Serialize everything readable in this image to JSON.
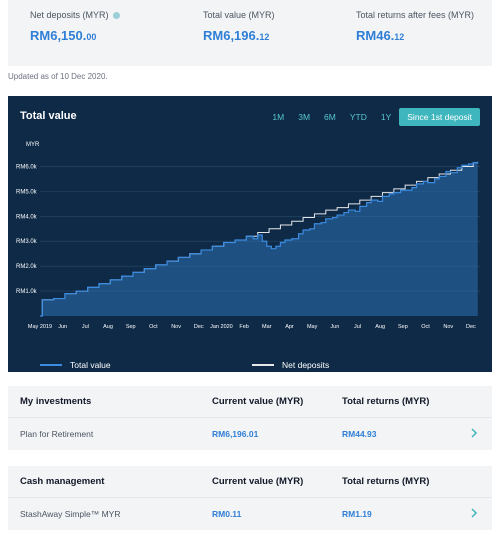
{
  "summary": {
    "net_deposits": {
      "label": "Net deposits (MYR)",
      "main": "RM6,150.",
      "cents": "00"
    },
    "total_value": {
      "label": "Total value (MYR)",
      "main": "RM6,196.",
      "cents": "12"
    },
    "total_returns": {
      "label": "Total returns after fees (MYR)",
      "main": "RM46.",
      "cents": "12"
    }
  },
  "updated": "Updated as of 10 Dec 2020.",
  "chart": {
    "title": "Total value",
    "ranges": [
      "1M",
      "3M",
      "6M",
      "YTD",
      "1Y",
      "Since 1st deposit"
    ],
    "active_range": "Since 1st deposit",
    "legend": {
      "total_value": "Total value",
      "net_deposits": "Net deposits"
    }
  },
  "chart_data": {
    "type": "area",
    "ylabel": "MYR",
    "y_ticks": [
      "RM1.0k",
      "RM2.0k",
      "RM3.0k",
      "RM4.0k",
      "RM5.0k",
      "RM6.0k"
    ],
    "ylim": [
      0,
      6500
    ],
    "x_ticks": [
      "May 2019",
      "Jun",
      "Jul",
      "Aug",
      "Sep",
      "Oct",
      "Nov",
      "Dec",
      "Jan 2020",
      "Feb",
      "Mar",
      "Apr",
      "May",
      "Jun",
      "Jul",
      "Aug",
      "Sep",
      "Oct",
      "Nov",
      "Dec"
    ],
    "colors": {
      "total_value": "#3b8be0",
      "net_deposits": "#e5e7eb",
      "area": "#2d6fb3"
    },
    "series": [
      {
        "name": "Total value",
        "x": [
          0,
          0.1,
          0.6,
          1.1,
          1.6,
          2.1,
          2.6,
          3.1,
          3.6,
          4.1,
          4.6,
          5.1,
          5.6,
          6.1,
          6.6,
          7.1,
          7.6,
          8.1,
          8.6,
          9.1,
          9.4,
          9.6,
          9.8,
          10.0,
          10.2,
          10.4,
          10.6,
          10.8,
          11.1,
          11.4,
          11.6,
          11.9,
          12.1,
          12.4,
          12.6,
          12.9,
          13.1,
          13.4,
          13.6,
          13.9,
          14.1,
          14.4,
          14.6,
          14.9,
          15.1,
          15.4,
          15.6,
          15.9,
          16.1,
          16.4,
          16.6,
          16.9,
          17.1,
          17.4,
          17.6,
          17.9,
          18.1,
          18.4,
          18.6,
          18.9,
          19.1,
          19.3
        ],
        "values": [
          0,
          650,
          700,
          900,
          1000,
          1150,
          1300,
          1450,
          1600,
          1750,
          1900,
          2050,
          2200,
          2350,
          2500,
          2650,
          2800,
          2950,
          3050,
          3200,
          3100,
          3250,
          3000,
          2800,
          2700,
          2800,
          2950,
          3050,
          3100,
          3300,
          3450,
          3500,
          3700,
          3750,
          3900,
          3950,
          4050,
          4150,
          4250,
          4200,
          4400,
          4550,
          4650,
          4600,
          4800,
          4900,
          4950,
          5050,
          5050,
          5150,
          5300,
          5400,
          5350,
          5500,
          5600,
          5800,
          5750,
          5950,
          6050,
          6100,
          6150,
          6196
        ]
      },
      {
        "name": "Net deposits",
        "x": [
          0,
          0.1,
          0.6,
          1.1,
          1.6,
          2.1,
          2.6,
          3.1,
          3.6,
          4.1,
          4.6,
          5.1,
          5.6,
          6.1,
          6.6,
          7.1,
          7.6,
          8.1,
          8.6,
          9.1,
          9.6,
          10.1,
          10.6,
          11.1,
          11.6,
          12.1,
          12.6,
          13.1,
          13.6,
          14.1,
          14.6,
          15.1,
          15.6,
          16.1,
          16.6,
          17.1,
          17.6,
          18.1,
          18.6,
          19.1,
          19.3
        ],
        "values": [
          0,
          650,
          700,
          900,
          1000,
          1150,
          1300,
          1450,
          1600,
          1750,
          1900,
          2050,
          2200,
          2350,
          2500,
          2650,
          2800,
          2950,
          3050,
          3200,
          3350,
          3500,
          3650,
          3800,
          3950,
          4100,
          4250,
          4350,
          4500,
          4650,
          4800,
          4950,
          5100,
          5250,
          5400,
          5550,
          5700,
          5850,
          6000,
          6150,
          6150
        ]
      }
    ]
  },
  "investments": {
    "head": {
      "title": "My investments",
      "current": "Current value (MYR)",
      "returns": "Total returns (MYR)"
    },
    "rows": [
      {
        "name": "Plan for Retirement",
        "current": "RM6,196.01",
        "returns": "RM44.93"
      }
    ]
  },
  "cash": {
    "head": {
      "title": "Cash management",
      "current": "Current value (MYR)",
      "returns": "Total returns (MYR)"
    },
    "rows": [
      {
        "name": "StashAway Simple™ MYR",
        "current": "RM0.11",
        "returns": "RM1.19"
      }
    ]
  }
}
